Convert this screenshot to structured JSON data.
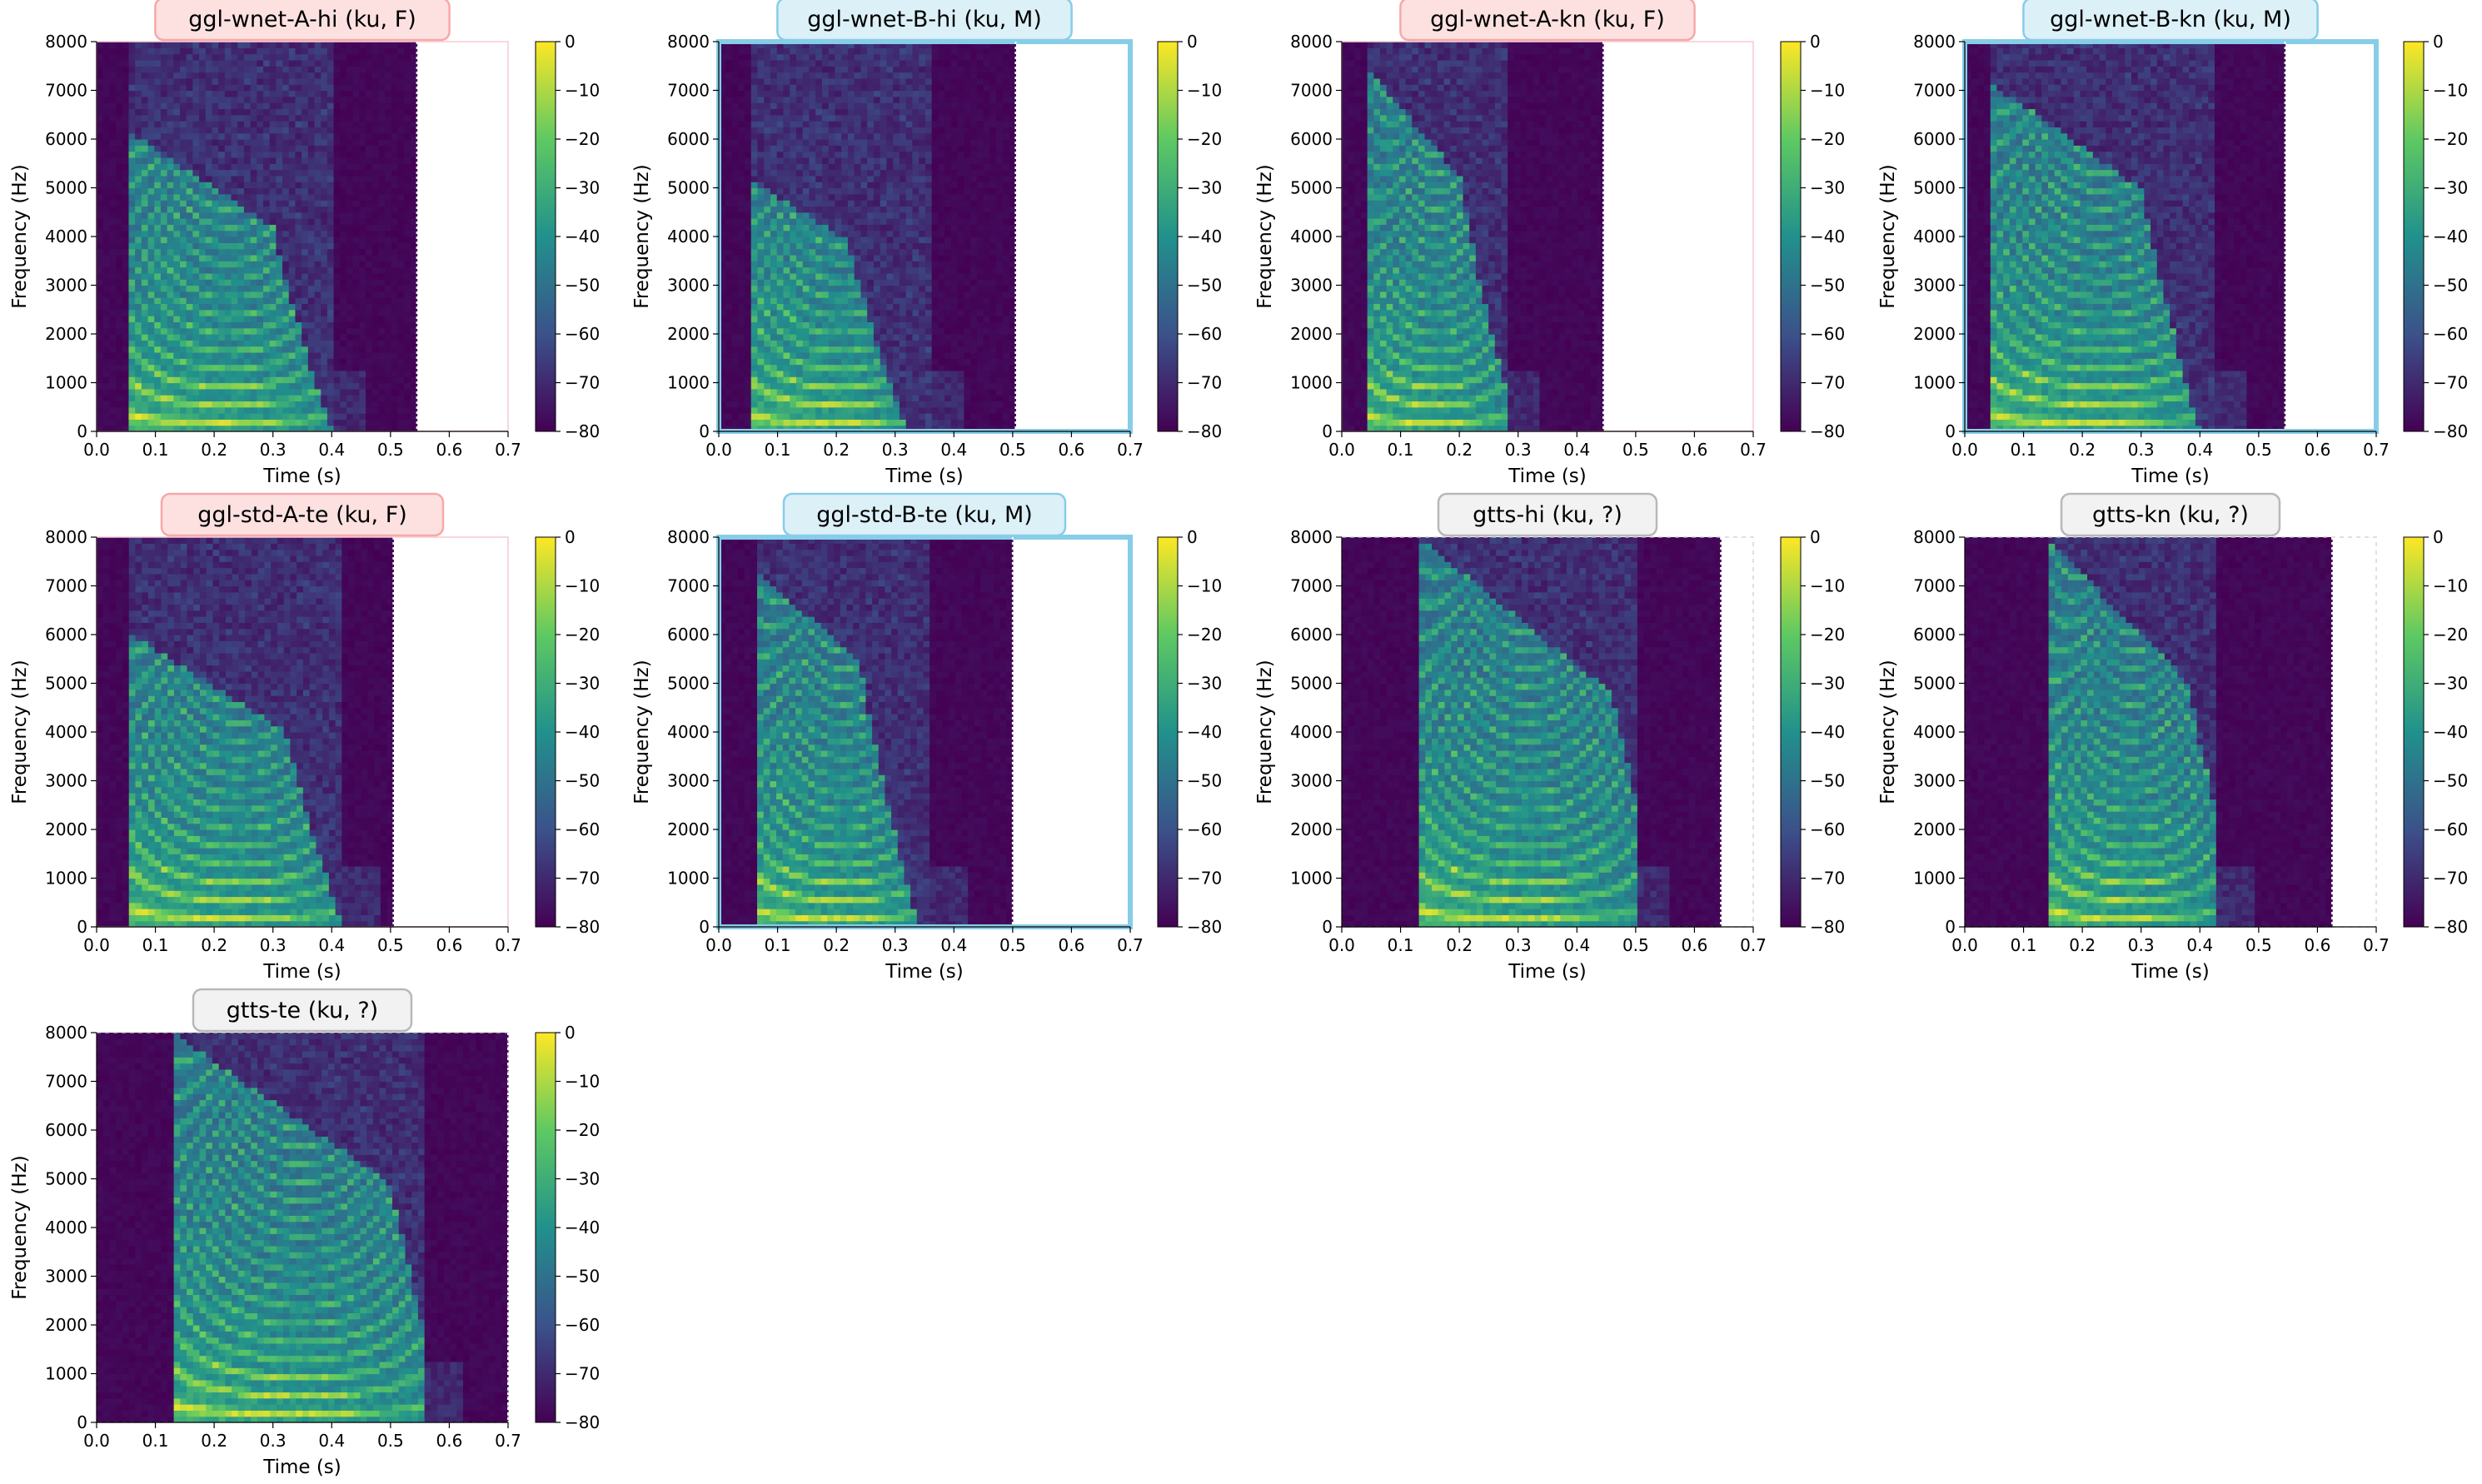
{
  "chart_data": [
    {
      "type": "heatmap",
      "title": "ggl-wnet-A-hi (ku, F)",
      "title_style": "female",
      "frame": "thin-pink",
      "xlabel": "Time (s)",
      "ylabel": "Frequency (Hz)",
      "xlim": [
        0,
        0.7
      ],
      "ylim": [
        0,
        8000
      ],
      "xticks": [
        "0.0",
        "0.1",
        "0.2",
        "0.3",
        "0.4",
        "0.5",
        "0.6",
        "0.7"
      ],
      "yticks": [
        "0",
        "1000",
        "2000",
        "3000",
        "4000",
        "5000",
        "6000",
        "7000",
        "8000"
      ],
      "colorbar_ticks": [
        "0",
        "−10",
        "−20",
        "−30",
        "−40",
        "−50",
        "−60",
        "−70",
        "−80"
      ],
      "colorbar_range_db": [
        -80,
        0
      ],
      "audio": {
        "end_time": 0.545,
        "onset": 0.05,
        "offset": 0.4,
        "high_energy_until": 0.3,
        "energy_top_hz": 6200,
        "bright_harmonics": 5
      }
    },
    {
      "type": "heatmap",
      "title": "ggl-wnet-B-hi (ku, M)",
      "title_style": "male",
      "frame": "thick-blue",
      "xlabel": "Time (s)",
      "ylabel": "Frequency (Hz)",
      "xlim": [
        0,
        0.7
      ],
      "ylim": [
        0,
        8000
      ],
      "xticks": [
        "0.0",
        "0.1",
        "0.2",
        "0.3",
        "0.4",
        "0.5",
        "0.6",
        "0.7"
      ],
      "yticks": [
        "0",
        "1000",
        "2000",
        "3000",
        "4000",
        "5000",
        "6000",
        "7000",
        "8000"
      ],
      "colorbar_ticks": [
        "0",
        "−10",
        "−20",
        "−30",
        "−40",
        "−50",
        "−60",
        "−70",
        "−80"
      ],
      "colorbar_range_db": [
        -80,
        0
      ],
      "audio": {
        "end_time": 0.505,
        "onset": 0.05,
        "offset": 0.36,
        "high_energy_until": 0.22,
        "energy_top_hz": 5200,
        "bright_harmonics": 6
      }
    },
    {
      "type": "heatmap",
      "title": "ggl-wnet-A-kn (ku, F)",
      "title_style": "female",
      "frame": "thin-pink",
      "xlabel": "Time (s)",
      "ylabel": "Frequency (Hz)",
      "xlim": [
        0,
        0.7
      ],
      "ylim": [
        0,
        8000
      ],
      "xticks": [
        "0.0",
        "0.1",
        "0.2",
        "0.3",
        "0.4",
        "0.5",
        "0.6",
        "0.7"
      ],
      "yticks": [
        "0",
        "1000",
        "2000",
        "3000",
        "4000",
        "5000",
        "6000",
        "7000",
        "8000"
      ],
      "colorbar_ticks": [
        "0",
        "−10",
        "−20",
        "−30",
        "−40",
        "−50",
        "−60",
        "−70",
        "−80"
      ],
      "colorbar_range_db": [
        -80,
        0
      ],
      "audio": {
        "end_time": 0.445,
        "onset": 0.04,
        "offset": 0.28,
        "high_energy_until": 0.2,
        "energy_top_hz": 7500,
        "bright_harmonics": 4
      }
    },
    {
      "type": "heatmap",
      "title": "ggl-wnet-B-kn (ku, M)",
      "title_style": "male",
      "frame": "thick-blue",
      "xlabel": "Time (s)",
      "ylabel": "Frequency (Hz)",
      "xlim": [
        0,
        0.7
      ],
      "ylim": [
        0,
        8000
      ],
      "xticks": [
        "0.0",
        "0.1",
        "0.2",
        "0.3",
        "0.4",
        "0.5",
        "0.6",
        "0.7"
      ],
      "yticks": [
        "0",
        "1000",
        "2000",
        "3000",
        "4000",
        "5000",
        "6000",
        "7000",
        "8000"
      ],
      "colorbar_ticks": [
        "0",
        "−10",
        "−20",
        "−30",
        "−40",
        "−50",
        "−60",
        "−70",
        "−80"
      ],
      "colorbar_range_db": [
        -80,
        0
      ],
      "audio": {
        "end_time": 0.545,
        "onset": 0.04,
        "offset": 0.42,
        "high_energy_until": 0.3,
        "energy_top_hz": 7200,
        "bright_harmonics": 5
      }
    },
    {
      "type": "heatmap",
      "title": "ggl-std-A-te (ku, F)",
      "title_style": "female",
      "frame": "thin-pink",
      "xlabel": "Time (s)",
      "ylabel": "Frequency (Hz)",
      "xlim": [
        0,
        0.7
      ],
      "ylim": [
        0,
        8000
      ],
      "xticks": [
        "0.0",
        "0.1",
        "0.2",
        "0.3",
        "0.4",
        "0.5",
        "0.6",
        "0.7"
      ],
      "yticks": [
        "0",
        "1000",
        "2000",
        "3000",
        "4000",
        "5000",
        "6000",
        "7000",
        "8000"
      ],
      "colorbar_ticks": [
        "0",
        "−10",
        "−20",
        "−30",
        "−40",
        "−50",
        "−60",
        "−70",
        "−80"
      ],
      "colorbar_range_db": [
        -80,
        0
      ],
      "audio": {
        "end_time": 0.505,
        "onset": 0.06,
        "offset": 0.42,
        "high_energy_until": 0.32,
        "energy_top_hz": 6000,
        "bright_harmonics": 4
      }
    },
    {
      "type": "heatmap",
      "title": "ggl-std-B-te (ku, M)",
      "title_style": "male",
      "frame": "thick-blue",
      "xlabel": "Time (s)",
      "ylabel": "Frequency (Hz)",
      "xlim": [
        0,
        0.7
      ],
      "ylim": [
        0,
        8000
      ],
      "xticks": [
        "0.0",
        "0.1",
        "0.2",
        "0.3",
        "0.4",
        "0.5",
        "0.6",
        "0.7"
      ],
      "yticks": [
        "0",
        "1000",
        "2000",
        "3000",
        "4000",
        "5000",
        "6000",
        "7000",
        "8000"
      ],
      "colorbar_ticks": [
        "0",
        "−10",
        "−20",
        "−30",
        "−40",
        "−50",
        "−60",
        "−70",
        "−80"
      ],
      "colorbar_range_db": [
        -80,
        0
      ],
      "audio": {
        "end_time": 0.5,
        "onset": 0.06,
        "offset": 0.36,
        "high_energy_until": 0.24,
        "energy_top_hz": 7400,
        "bright_harmonics": 6
      }
    },
    {
      "type": "heatmap",
      "title": "gtts-hi (ku, ?)",
      "title_style": "unknown",
      "frame": "dashed-grey",
      "xlabel": "Time (s)",
      "ylabel": "Frequency (Hz)",
      "xlim": [
        0,
        0.7
      ],
      "ylim": [
        0,
        8000
      ],
      "xticks": [
        "0.0",
        "0.1",
        "0.2",
        "0.3",
        "0.4",
        "0.5",
        "0.6",
        "0.7"
      ],
      "yticks": [
        "0",
        "1000",
        "2000",
        "3000",
        "4000",
        "5000",
        "6000",
        "7000",
        "8000"
      ],
      "colorbar_ticks": [
        "0",
        "−10",
        "−20",
        "−30",
        "−40",
        "−50",
        "−60",
        "−70",
        "−80"
      ],
      "colorbar_range_db": [
        -80,
        0
      ],
      "audio": {
        "end_time": 0.645,
        "onset": 0.13,
        "offset": 0.5,
        "high_energy_until": 0.46,
        "energy_top_hz": 8000,
        "bright_harmonics": 4
      }
    },
    {
      "type": "heatmap",
      "title": "gtts-kn (ku, ?)",
      "title_style": "unknown",
      "frame": "dashed-grey",
      "xlabel": "Time (s)",
      "ylabel": "Frequency (Hz)",
      "xlim": [
        0,
        0.7
      ],
      "ylim": [
        0,
        8000
      ],
      "xticks": [
        "0.0",
        "0.1",
        "0.2",
        "0.3",
        "0.4",
        "0.5",
        "0.6",
        "0.7"
      ],
      "yticks": [
        "0",
        "1000",
        "2000",
        "3000",
        "4000",
        "5000",
        "6000",
        "7000",
        "8000"
      ],
      "colorbar_ticks": [
        "0",
        "−10",
        "−20",
        "−30",
        "−40",
        "−50",
        "−60",
        "−70",
        "−80"
      ],
      "colorbar_range_db": [
        -80,
        0
      ],
      "audio": {
        "end_time": 0.625,
        "onset": 0.14,
        "offset": 0.43,
        "high_energy_until": 0.38,
        "energy_top_hz": 8000,
        "bright_harmonics": 5
      }
    },
    {
      "type": "heatmap",
      "title": "gtts-te (ku, ?)",
      "title_style": "unknown",
      "frame": "dashed-grey",
      "xlabel": "Time (s)",
      "ylabel": "Frequency (Hz)",
      "xlim": [
        0,
        0.7
      ],
      "ylim": [
        0,
        8000
      ],
      "xticks": [
        "0.0",
        "0.1",
        "0.2",
        "0.3",
        "0.4",
        "0.5",
        "0.6",
        "0.7"
      ],
      "yticks": [
        "0",
        "1000",
        "2000",
        "3000",
        "4000",
        "5000",
        "6000",
        "7000",
        "8000"
      ],
      "colorbar_ticks": [
        "0",
        "−10",
        "−20",
        "−30",
        "−40",
        "−50",
        "−60",
        "−70",
        "−80"
      ],
      "colorbar_range_db": [
        -80,
        0
      ],
      "audio": {
        "end_time": 0.7,
        "onset": 0.13,
        "offset": 0.56,
        "high_energy_until": 0.5,
        "energy_top_hz": 8000,
        "bright_harmonics": 4
      }
    }
  ],
  "colors": {
    "female_title_bg": "#fde1e1",
    "female_title_border": "#f7a8a8",
    "female_frame": "#f8c8d0",
    "male_title_bg": "#dcf0f8",
    "male_title_border": "#87cde8",
    "male_frame": "#87cde8",
    "unknown_title_bg": "#f2f2f2",
    "unknown_title_border": "#b8b8b8",
    "unknown_frame": "#cccccc",
    "viridis": [
      "#440154",
      "#3b528b",
      "#21918c",
      "#5ec962",
      "#fde725"
    ]
  }
}
